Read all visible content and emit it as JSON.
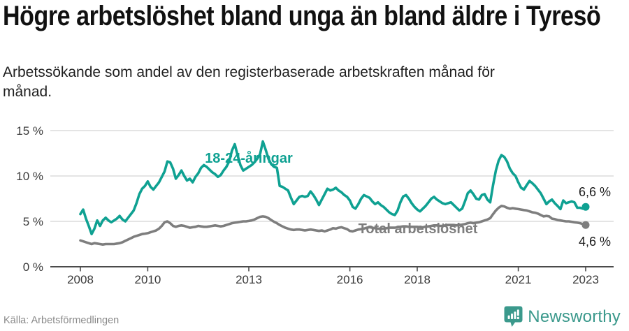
{
  "header": {
    "title": "Högre arbetslöshet bland unga än bland äldre i Tyresö",
    "subtitle": "Arbetssökande som andel av den registerbaserade arbetskraften månad för månad."
  },
  "footer": {
    "source": "Källa: Arbetsförmedlingen",
    "brand": "Newsworthy",
    "logo_icon": "newsworthy-chart-bubble-icon"
  },
  "colors": {
    "youth_line": "#0FA192",
    "total_line": "#7E7E7E",
    "grid": "#DCDCDC",
    "axis": "#4B4B4B",
    "tick_text": "#3A3A3A",
    "end_label_text": "#1C1C1C",
    "source_text": "#8A8A8A",
    "brand_teal": "#3B998C",
    "background": "#FFFFFF"
  },
  "chart_data": {
    "type": "line",
    "title": "Högre arbetslöshet bland unga än bland äldre i Tyresö",
    "subtitle": "Arbetssökande som andel av den registerbaserade arbetskraften månad för månad.",
    "unit": "%",
    "grid": "horizontal",
    "legend_position": "inline-labels",
    "x_start_year": 2008,
    "x_start_month": 1,
    "x_step_months": 1,
    "x_end_year": 2023,
    "ylim": [
      0,
      15.5
    ],
    "x_ticks": [
      {
        "year": 2008,
        "label": "2008"
      },
      {
        "year": 2010,
        "label": "2010"
      },
      {
        "year": 2013,
        "label": "2013"
      },
      {
        "year": 2016,
        "label": "2016"
      },
      {
        "year": 2018,
        "label": "2018"
      },
      {
        "year": 2021,
        "label": "2021"
      },
      {
        "year": 2023,
        "label": "2023"
      }
    ],
    "y_ticks": [
      {
        "value": 0,
        "label": "0 %"
      },
      {
        "value": 5,
        "label": "5 %"
      },
      {
        "value": 10,
        "label": "10 %"
      },
      {
        "value": 15,
        "label": "15 %"
      }
    ],
    "series": [
      {
        "name": "18-24-åringar",
        "color": "#0FA192",
        "end_label": "6,6 %",
        "last_value": 6.6,
        "values": [
          5.8,
          6.3,
          5.3,
          4.5,
          3.6,
          4.2,
          5.1,
          4.5,
          5.1,
          5.4,
          5.1,
          4.9,
          5.1,
          5.3,
          5.6,
          5.2,
          5.0,
          5.4,
          5.8,
          6.2,
          7.0,
          8.0,
          8.6,
          8.9,
          9.4,
          8.8,
          8.5,
          8.9,
          9.3,
          9.9,
          10.5,
          11.6,
          11.5,
          10.8,
          9.7,
          10.1,
          10.6,
          10.0,
          9.5,
          9.7,
          9.3,
          9.9,
          10.3,
          10.9,
          11.2,
          11.0,
          10.7,
          10.4,
          10.2,
          9.9,
          10.1,
          10.6,
          11.0,
          11.6,
          12.8,
          13.5,
          12.3,
          11.2,
          10.6,
          10.8,
          11.0,
          11.2,
          11.5,
          11.9,
          12.4,
          13.8,
          12.9,
          11.9,
          11.3,
          11.0,
          10.9,
          8.9,
          8.8,
          8.6,
          8.4,
          7.6,
          6.9,
          7.3,
          7.7,
          7.8,
          7.7,
          7.8,
          8.3,
          7.9,
          7.4,
          6.8,
          7.4,
          8.0,
          8.6,
          8.4,
          8.5,
          8.7,
          8.4,
          8.2,
          7.9,
          7.7,
          7.3,
          6.6,
          6.4,
          6.9,
          7.5,
          7.9,
          7.75,
          7.6,
          7.2,
          6.9,
          7.1,
          6.8,
          6.6,
          6.3,
          6.0,
          5.8,
          5.7,
          6.2,
          7.1,
          7.75,
          7.9,
          7.5,
          7.0,
          6.6,
          6.3,
          6.1,
          6.4,
          6.7,
          7.1,
          7.5,
          7.7,
          7.4,
          7.2,
          7.0,
          6.9,
          7.0,
          7.1,
          6.8,
          6.5,
          6.2,
          6.4,
          7.2,
          8.1,
          8.4,
          8.0,
          7.5,
          7.4,
          7.9,
          8.0,
          7.4,
          7.1,
          9.0,
          10.6,
          11.7,
          12.3,
          12.1,
          11.6,
          10.8,
          10.3,
          10.0,
          9.3,
          8.7,
          8.5,
          9.0,
          9.45,
          9.2,
          8.9,
          8.5,
          8.1,
          7.5,
          6.9,
          7.2,
          7.4,
          7.0,
          6.7,
          6.35,
          7.3,
          7.0,
          7.1,
          7.2,
          7.1,
          6.5,
          6.5,
          6.4,
          6.6
        ]
      },
      {
        "name": "Total arbetslöshet",
        "color": "#7E7E7E",
        "end_label": "4,6 %",
        "last_value": 4.6,
        "values": [
          2.9,
          2.8,
          2.7,
          2.6,
          2.5,
          2.6,
          2.55,
          2.5,
          2.45,
          2.5,
          2.5,
          2.5,
          2.5,
          2.55,
          2.6,
          2.7,
          2.85,
          3.0,
          3.15,
          3.3,
          3.4,
          3.5,
          3.6,
          3.65,
          3.7,
          3.8,
          3.9,
          4.0,
          4.2,
          4.5,
          4.9,
          5.0,
          4.8,
          4.5,
          4.4,
          4.5,
          4.55,
          4.5,
          4.4,
          4.3,
          4.35,
          4.4,
          4.5,
          4.45,
          4.4,
          4.4,
          4.45,
          4.5,
          4.55,
          4.5,
          4.45,
          4.5,
          4.6,
          4.7,
          4.8,
          4.85,
          4.9,
          4.95,
          5.0,
          5.0,
          5.05,
          5.1,
          5.2,
          5.35,
          5.5,
          5.55,
          5.5,
          5.35,
          5.15,
          4.95,
          4.8,
          4.6,
          4.45,
          4.3,
          4.2,
          4.1,
          4.05,
          4.1,
          4.1,
          4.05,
          4.0,
          4.05,
          4.1,
          4.05,
          4.0,
          3.95,
          4.0,
          3.9,
          4.0,
          4.1,
          4.25,
          4.2,
          4.3,
          4.35,
          4.25,
          4.15,
          3.95,
          3.9,
          4.0,
          4.1,
          4.15,
          4.2,
          4.3,
          4.35,
          4.3,
          4.25,
          4.2,
          4.2,
          4.2,
          4.25,
          4.3,
          4.3,
          4.3,
          4.35,
          4.4,
          4.45,
          4.45,
          4.4,
          4.4,
          4.4,
          4.4,
          4.35,
          4.35,
          4.4,
          4.45,
          4.5,
          4.55,
          4.55,
          4.5,
          4.5,
          4.55,
          4.6,
          4.6,
          4.6,
          4.55,
          4.6,
          4.65,
          4.7,
          4.8,
          4.85,
          4.8,
          4.85,
          4.9,
          5.0,
          5.1,
          5.2,
          5.35,
          5.8,
          6.2,
          6.5,
          6.7,
          6.65,
          6.5,
          6.4,
          6.45,
          6.4,
          6.35,
          6.3,
          6.25,
          6.2,
          6.1,
          6.0,
          5.95,
          5.85,
          5.7,
          5.55,
          5.6,
          5.55,
          5.3,
          5.25,
          5.15,
          5.1,
          5.05,
          5.0,
          5.0,
          4.95,
          4.9,
          4.85,
          4.8,
          4.7,
          4.6
        ]
      }
    ]
  }
}
